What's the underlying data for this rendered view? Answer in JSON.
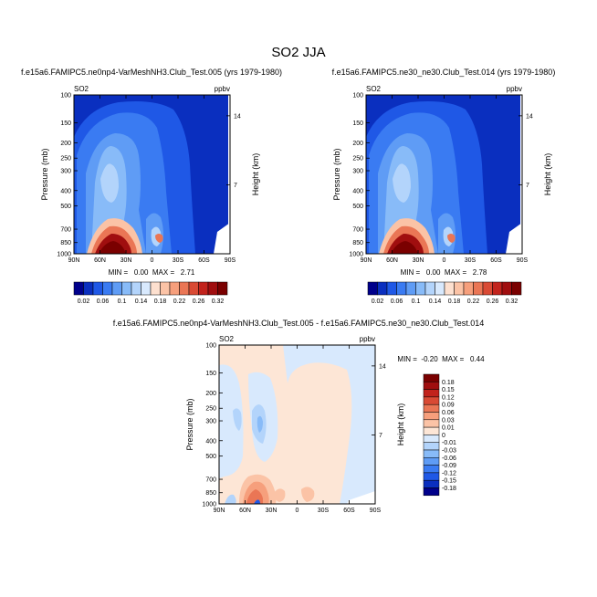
{
  "figure": {
    "title": "SO2 JJA"
  },
  "chart_data": [
    {
      "type": "heatmap",
      "title": "f.e15a6.FAMIPC5.ne0np4-VarMeshNH3.Club_Test.005 (yrs 1979-1980)",
      "left_label": "SO2",
      "units": "ppbv",
      "xlabel": "",
      "ylabel": "Pressure (mb)",
      "y2label": "Height (km)",
      "x_ticks": [
        "90N",
        "60N",
        "30N",
        "0",
        "30S",
        "60S",
        "90S"
      ],
      "y_ticks": [
        "100",
        "150",
        "200",
        "250",
        "300",
        "400",
        "500",
        "700",
        "850",
        "1000"
      ],
      "y2_ticks": [
        "14",
        "7"
      ],
      "min_max_text": "MIN =   0.00  MAX =   2.71",
      "colorbar_levels": [
        "0.02",
        "0.06",
        "0.1",
        "0.14",
        "0.18",
        "0.22",
        "0.26",
        "0.32"
      ],
      "legend": "bottom"
    },
    {
      "type": "heatmap",
      "title": "f.e15a6.FAMIPC5.ne30_ne30.Club_Test.014 (yrs 1979-1980)",
      "left_label": "SO2",
      "units": "ppbv",
      "xlabel": "",
      "ylabel": "Pressure (mb)",
      "y2label": "Height (km)",
      "x_ticks": [
        "90N",
        "60N",
        "30N",
        "0",
        "30S",
        "60S",
        "90S"
      ],
      "y_ticks": [
        "100",
        "150",
        "200",
        "250",
        "300",
        "400",
        "500",
        "700",
        "850",
        "1000"
      ],
      "y2_ticks": [
        "14",
        "7"
      ],
      "min_max_text": "MIN =   0.00  MAX =   2.78",
      "colorbar_levels": [
        "0.02",
        "0.06",
        "0.1",
        "0.14",
        "0.18",
        "0.22",
        "0.26",
        "0.32"
      ],
      "legend": "bottom"
    },
    {
      "type": "heatmap",
      "title": "f.e15a6.FAMIPC5.ne0np4-VarMeshNH3.Club_Test.005 - f.e15a6.FAMIPC5.ne30_ne30.Club_Test.014",
      "left_label": "SO2",
      "units": "ppbv",
      "xlabel": "",
      "ylabel": "Pressure (mb)",
      "y2label": "Height (km)",
      "x_ticks": [
        "90N",
        "60N",
        "30N",
        "0",
        "30S",
        "60S",
        "90S"
      ],
      "y_ticks": [
        "100",
        "150",
        "200",
        "250",
        "300",
        "400",
        "500",
        "700",
        "850",
        "1000"
      ],
      "y2_ticks": [
        "14",
        "7"
      ],
      "min_max_text": "MIN =  -0.20  MAX =   0.44",
      "colorbar_levels": [
        "0.18",
        "0.15",
        "0.12",
        "0.09",
        "0.06",
        "0.03",
        "0.01",
        "0",
        "-0.01",
        "-0.03",
        "-0.06",
        "-0.09",
        "-0.12",
        "-0.15",
        "-0.18"
      ],
      "legend": "right"
    }
  ],
  "colors": {
    "abs_scale": [
      "#00008b",
      "#0a2fbf",
      "#1f58e6",
      "#3a7bf2",
      "#5f9cf5",
      "#88bbf8",
      "#b3d4fb",
      "#d8e9fd",
      "#fde0cf",
      "#fbc3a6",
      "#f69f7c",
      "#ea7655",
      "#d94a34",
      "#c2231c",
      "#a00e0f",
      "#7a0000"
    ],
    "diff_scale": [
      "#7a0000",
      "#a00e0f",
      "#c2231c",
      "#d94a34",
      "#ea7655",
      "#f69f7c",
      "#fbc3a6",
      "#fde6d6",
      "#d8e9fd",
      "#b3d4fb",
      "#88bbf8",
      "#5f9cf5",
      "#3a7bf2",
      "#1f58e6",
      "#0a2fbf",
      "#00008b"
    ]
  }
}
